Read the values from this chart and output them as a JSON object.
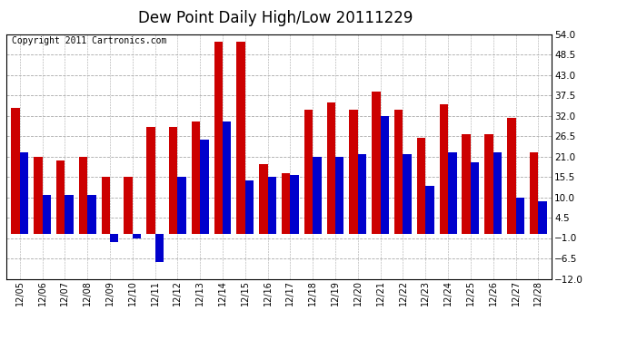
{
  "title": "Dew Point Daily High/Low 20111229",
  "copyright": "Copyright 2011 Cartronics.com",
  "dates": [
    "12/05",
    "12/06",
    "12/07",
    "12/08",
    "12/09",
    "12/10",
    "12/11",
    "12/12",
    "12/13",
    "12/14",
    "12/15",
    "12/16",
    "12/17",
    "12/18",
    "12/19",
    "12/20",
    "12/21",
    "12/22",
    "12/23",
    "12/24",
    "12/25",
    "12/26",
    "12/27",
    "12/28"
  ],
  "high": [
    34.0,
    21.0,
    20.0,
    21.0,
    15.5,
    15.5,
    29.0,
    29.0,
    30.5,
    52.0,
    52.0,
    19.0,
    16.5,
    33.5,
    35.5,
    33.5,
    38.5,
    33.5,
    26.0,
    35.0,
    27.0,
    27.0,
    31.5,
    22.0
  ],
  "low": [
    22.0,
    10.5,
    10.5,
    10.5,
    -2.0,
    -1.0,
    -7.5,
    15.5,
    25.5,
    30.5,
    14.5,
    15.5,
    16.0,
    21.0,
    21.0,
    21.5,
    32.0,
    21.5,
    13.0,
    22.0,
    19.5,
    22.0,
    10.0,
    9.0
  ],
  "high_color": "#cc0000",
  "low_color": "#0000cc",
  "ylim": [
    -12.0,
    54.0
  ],
  "yticks": [
    54.0,
    48.5,
    43.0,
    37.5,
    32.0,
    26.5,
    21.0,
    15.5,
    10.0,
    4.5,
    -1.0,
    -6.5,
    -12.0
  ],
  "background_color": "#ffffff",
  "grid_color": "#aaaaaa",
  "title_fontsize": 12,
  "copyright_fontsize": 7,
  "bar_width": 0.38
}
